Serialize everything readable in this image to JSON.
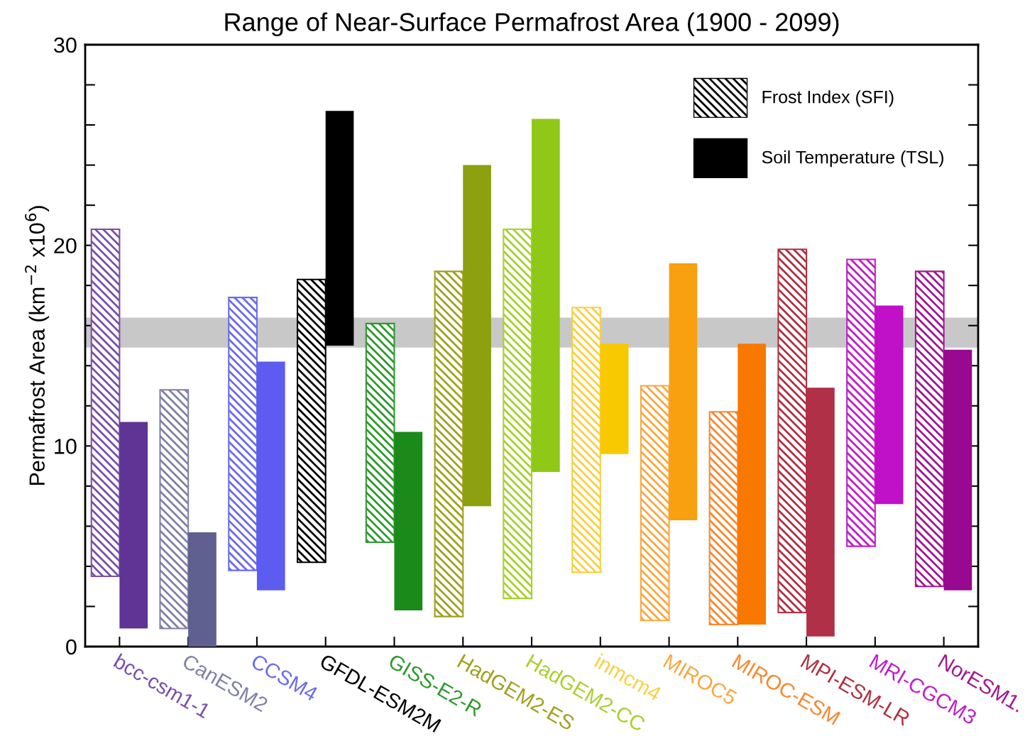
{
  "chart_data": {
    "type": "bar",
    "title": "Range of Near-Surface Permafrost Area (1900 - 2099)",
    "ylabel": "Permafrost Area (km$^{−2}$ x10$^{6}$)",
    "categories": [
      "bcc-csm1-1",
      "CanESM2",
      "CCSM4",
      "GFDL-ESM2M",
      "GISS-E2-R",
      "HadGEM2-ES",
      "HadGEM2-CC",
      "inmcm4",
      "MIROC5",
      "MIROC-ESM",
      "MPI-ESM-LR",
      "MRI-CGCM3",
      "NorESM1."
    ],
    "series": [
      {
        "name": "Frost Index (SFI)",
        "color": "#000000",
        "colors": [
          "#7a4fa8",
          "#8080a8",
          "#6a6af0",
          "#000000",
          "#2e9a2e",
          "#a0a020",
          "#a8d030",
          "#f8d040",
          "#f8a840",
          "#f88830",
          "#b03040",
          "#c020c8",
          "#a01890"
        ],
        "base": [
          3.5,
          0.9,
          3.8,
          4.2,
          5.2,
          1.5,
          2.4,
          3.7,
          1.3,
          1.1,
          1.7,
          5.0,
          3.0
        ],
        "values": [
          17.3,
          11.9,
          13.6,
          14.1,
          10.9,
          17.2,
          18.4,
          13.2,
          11.7,
          10.6,
          18.1,
          14.3,
          15.7
        ]
      },
      {
        "name": "Soil Temperature (TSL)",
        "color": "#000000",
        "colors": [
          "#5e3494",
          "#5f6090",
          "#5c5cf0",
          "#000000",
          "#1a8a1a",
          "#8ca010",
          "#90c818",
          "#f8c800",
          "#f8a010",
          "#f87800",
          "#b03048",
          "#c010c8",
          "#980890"
        ],
        "base": [
          0.9,
          0,
          2.8,
          15.0,
          1.8,
          7.0,
          8.7,
          9.6,
          6.3,
          1.1,
          0.5,
          7.1,
          2.8
        ],
        "values": [
          10.3,
          5.7,
          11.4,
          11.7,
          8.9,
          17.0,
          17.6,
          5.5,
          12.8,
          14.0,
          12.4,
          9.9,
          12.0
        ]
      }
    ],
    "bands": [
      {
        "axis": "y",
        "from": 14.9,
        "to": 16.4,
        "color": "#c8c8c8"
      }
    ],
    "ylim": [
      0,
      30
    ],
    "yticks": [
      0,
      {
        "value": 2,
        "label": null
      },
      {
        "value": 4,
        "label": null
      },
      {
        "value": 6,
        "label": null
      },
      {
        "value": 8,
        "label": null
      },
      10,
      {
        "value": 12,
        "label": null
      },
      {
        "value": 14,
        "label": null
      },
      {
        "value": 16,
        "label": null
      },
      {
        "value": 18,
        "label": null
      },
      20,
      {
        "value": 22,
        "label": null
      },
      {
        "value": 24,
        "label": null
      },
      {
        "value": 26,
        "label": null
      },
      {
        "value": 28,
        "label": null
      },
      30
    ],
    "legend": "top right",
    "grid": false
  }
}
